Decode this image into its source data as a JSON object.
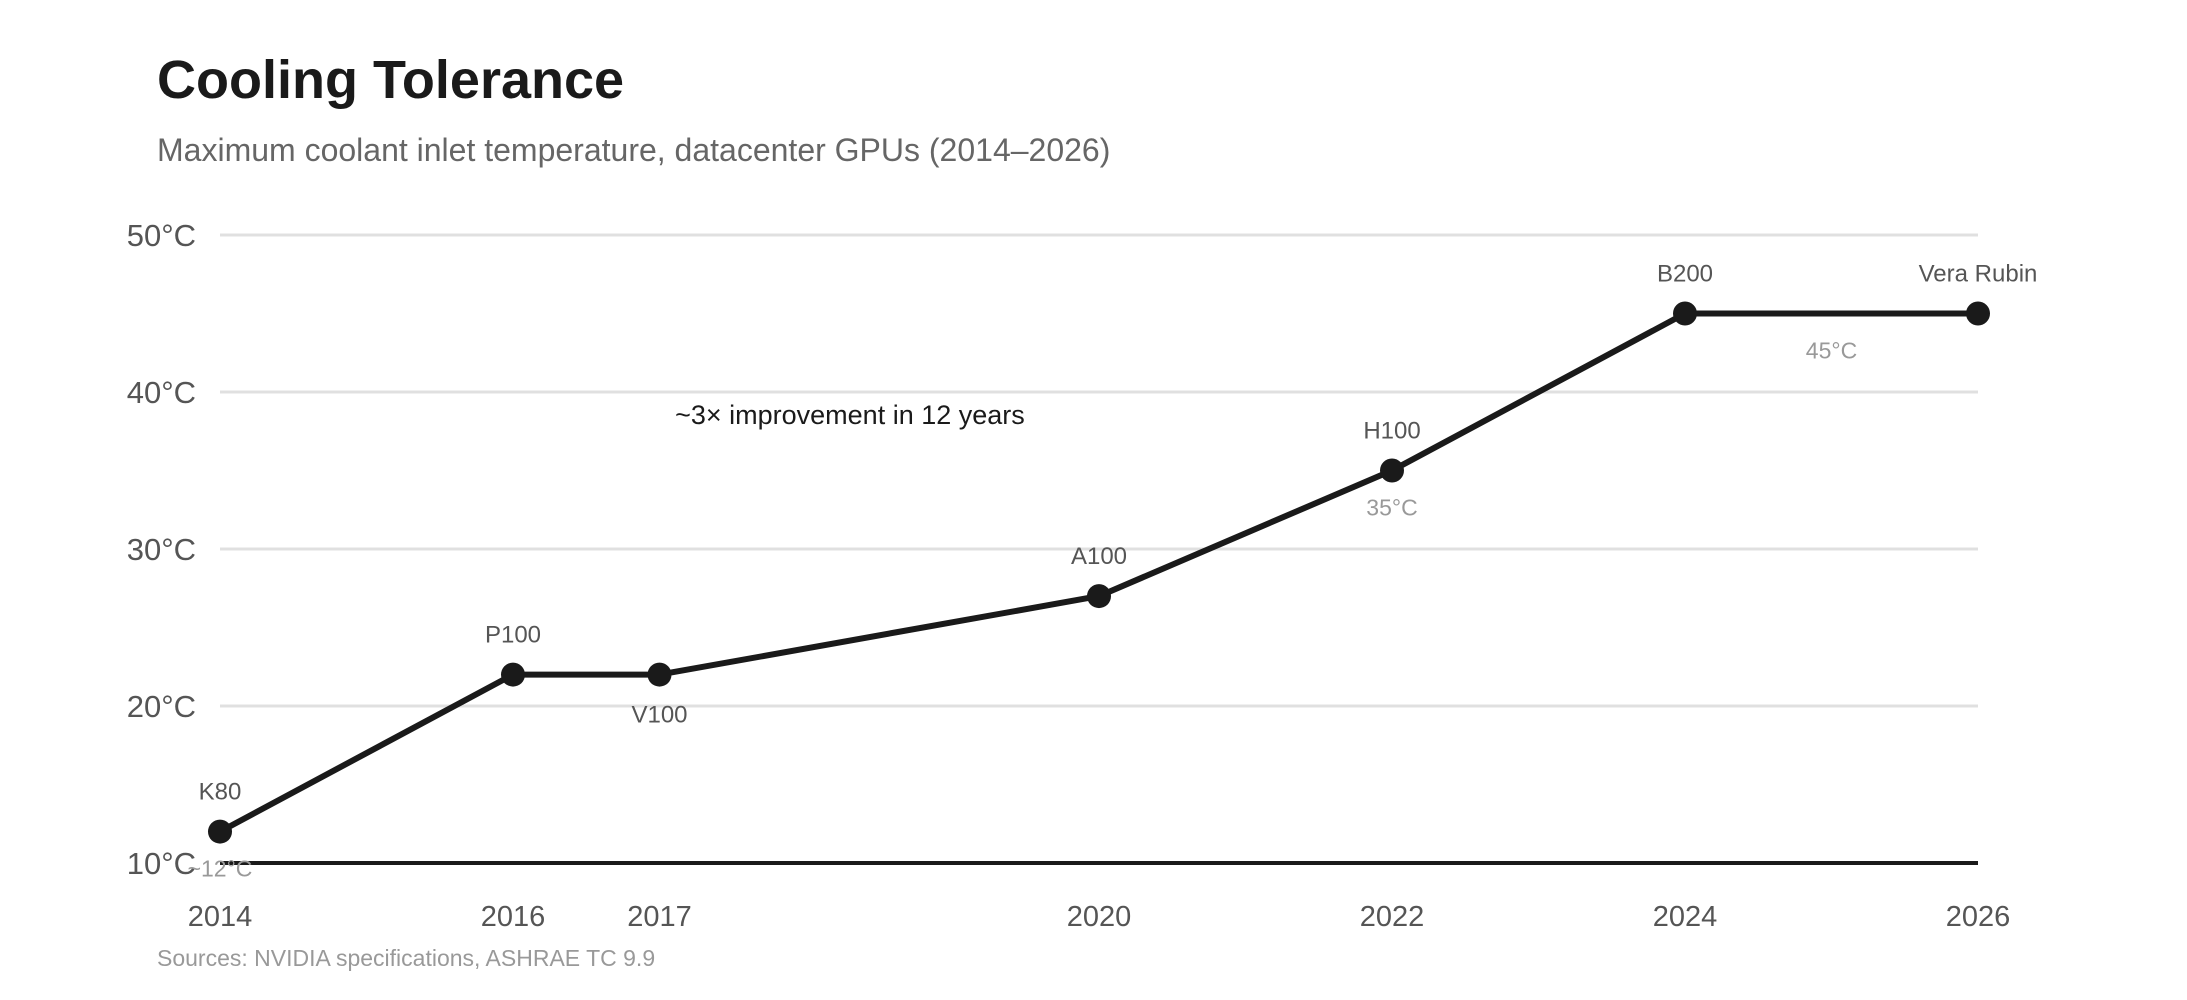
{
  "chart_data": {
    "type": "line",
    "title": "Cooling Tolerance",
    "subtitle": "Maximum coolant inlet temperature, datacenter GPUs (2014–2026)",
    "xlabel": "",
    "ylabel": "",
    "xlim": [
      2014,
      2026
    ],
    "ylim": [
      10,
      50
    ],
    "x_ticks": [
      "2014",
      "2016",
      "2017",
      "2020",
      "2022",
      "2024",
      "2026"
    ],
    "y_ticks": [
      "10°C",
      "20°C",
      "30°C",
      "40°C",
      "50°C"
    ],
    "grid": true,
    "line_color": "#1a1a1a",
    "points": [
      {
        "name": "K80",
        "x": 2014,
        "y": 12,
        "label_pos": "above"
      },
      {
        "name": "P100",
        "x": 2016,
        "y": 22,
        "label_pos": "above"
      },
      {
        "name": "V100",
        "x": 2017,
        "y": 22,
        "label_pos": "below"
      },
      {
        "name": "A100",
        "x": 2020,
        "y": 27,
        "label_pos": "above"
      },
      {
        "name": "H100",
        "x": 2022,
        "y": 35,
        "label_pos": "above"
      },
      {
        "name": "B200",
        "x": 2024,
        "y": 45,
        "label_pos": "above"
      },
      {
        "name": "Vera Rubin",
        "x": 2026,
        "y": 45,
        "label_pos": "above"
      }
    ],
    "value_labels": [
      {
        "text": "~12°C",
        "x": 2014,
        "y": 12
      },
      {
        "text": "35°C",
        "x": 2022,
        "y": 35
      },
      {
        "text": "45°C",
        "x": 2025,
        "y": 45
      }
    ],
    "annotation": {
      "text": "~3× improvement in 12 years",
      "x": 2018.3,
      "y": 38.6
    },
    "source": "Sources: NVIDIA specifications, ASHRAE TC 9.9"
  }
}
